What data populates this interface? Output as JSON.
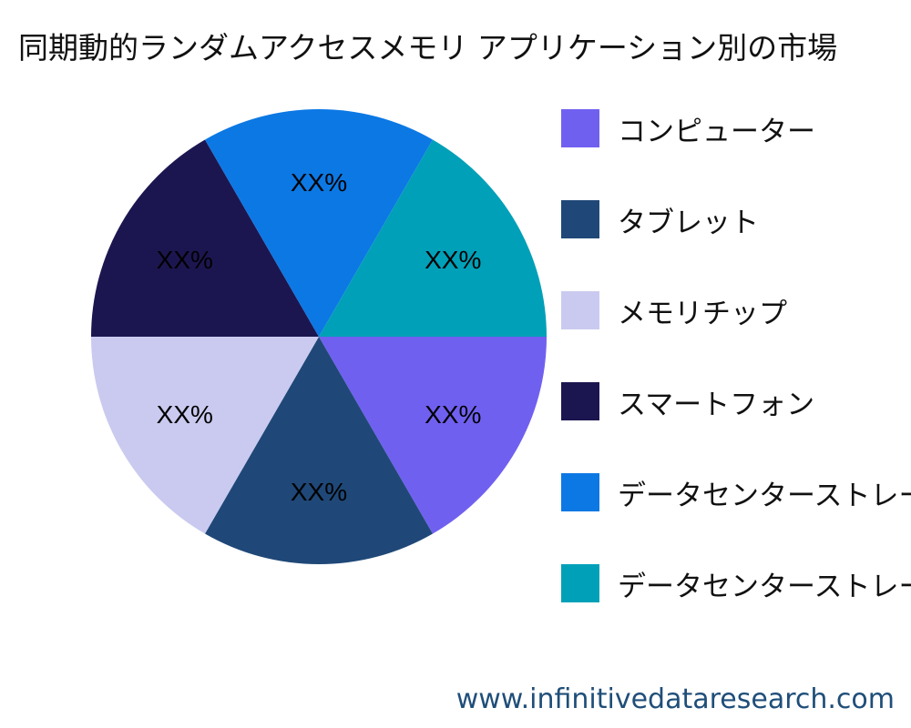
{
  "chart_data": {
    "type": "pie",
    "title": "同期動的ランダムアクセスメモリ アプリケーション別の市場",
    "slices": [
      {
        "label": "コンピューター",
        "value": 16.67,
        "display": "XX%",
        "color": "#7060f0"
      },
      {
        "label": "タブレット",
        "value": 16.67,
        "display": "XX%",
        "color": "#1f4878"
      },
      {
        "label": "メモリチップ",
        "value": 16.67,
        "display": "XX%",
        "color": "#cacaf0"
      },
      {
        "label": "スマートフォン",
        "value": 16.67,
        "display": "XX%",
        "color": "#1c1650"
      },
      {
        "label": "データセンターストレージ",
        "value": 16.67,
        "display": "XX%",
        "color": "#0c78e4"
      },
      {
        "label": "データセンターストレージ",
        "value": 16.67,
        "display": "XX%",
        "color": "#00a0b8"
      }
    ],
    "legend_position": "right"
  },
  "watermark": "www.infinitivedataresearch.com"
}
